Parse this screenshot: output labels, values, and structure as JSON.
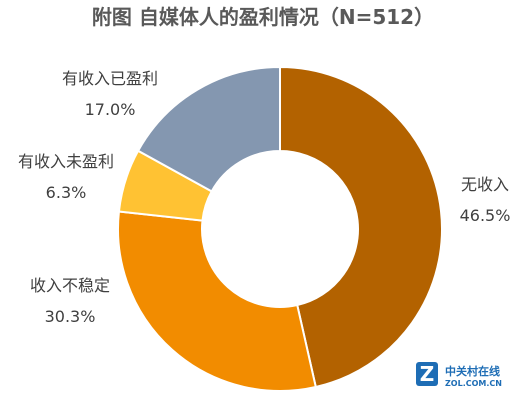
{
  "chart_data": {
    "type": "pie",
    "title": "附图 自媒体人的盈利情况（N=512）",
    "donut": true,
    "slices": [
      {
        "label": "无收入",
        "value": 46.5,
        "value_text": "46.5%",
        "color": "#b36200"
      },
      {
        "label": "收入不稳定",
        "value": 30.3,
        "value_text": "30.3%",
        "color": "#f28c00"
      },
      {
        "label": "有收入未盈利",
        "value": 6.3,
        "value_text": "6.3%",
        "color": "#ffc233"
      },
      {
        "label": "有收入已盈利",
        "value": 17.0,
        "value_text": "17.0%",
        "color": "#8497b0"
      }
    ]
  },
  "watermark": {
    "brand": "中关村在线",
    "site": "ZOL.COM.CN",
    "logo_letter": "Z"
  }
}
